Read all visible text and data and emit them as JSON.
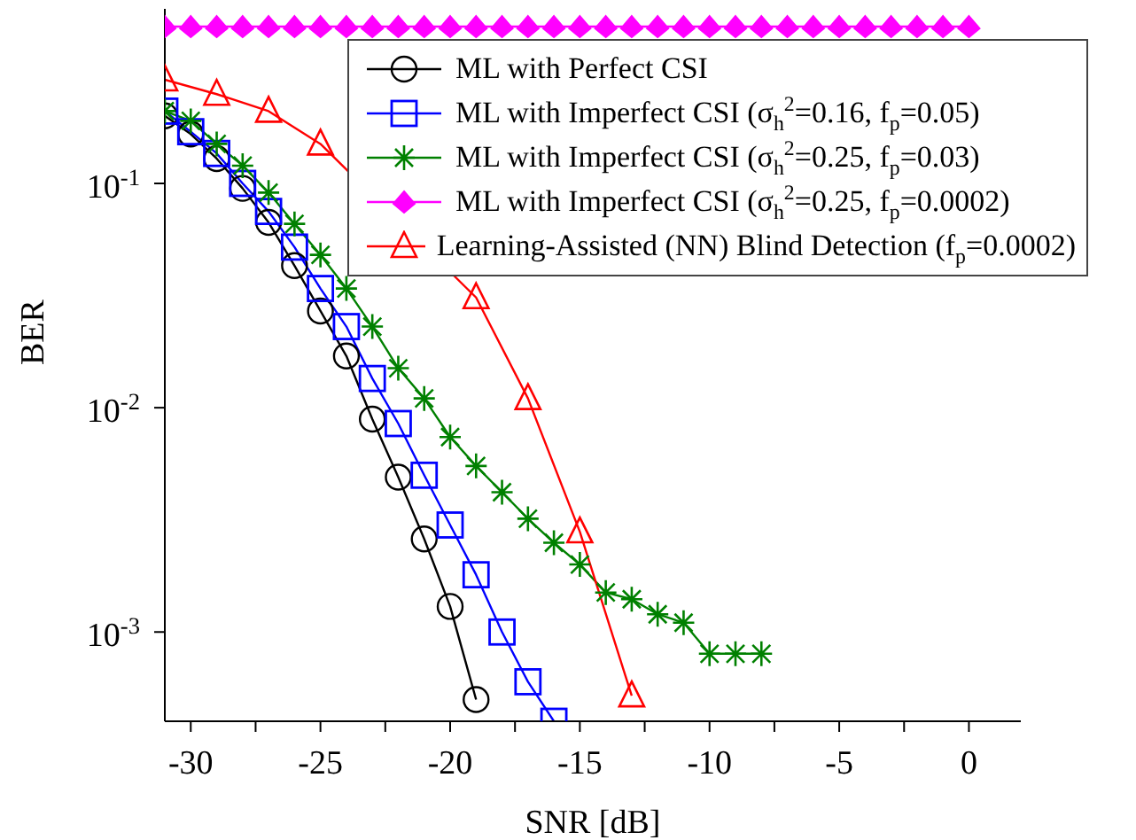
{
  "chart_data": {
    "type": "line",
    "xlabel": "SNR [dB]",
    "ylabel": "BER",
    "log": "y",
    "grid": false,
    "legend": "top right",
    "xlim": [
      -31,
      2
    ],
    "ylim": [
      0.0004,
      0.6
    ],
    "xticks": [
      -30,
      {
        "value": -27.5,
        "label": null
      },
      -25,
      {
        "value": -22.5,
        "label": null
      },
      -20,
      {
        "value": -17.5,
        "label": null
      },
      -15,
      {
        "value": -12.5,
        "label": null
      },
      -10,
      {
        "value": -7.5,
        "label": null
      },
      -5,
      {
        "value": -2.5,
        "label": null
      },
      0
    ],
    "yticks": [
      {
        "value": 0.001,
        "label": "10$^{-3}$"
      },
      {
        "value": 0.01,
        "label": "10$^{-2}$"
      },
      {
        "value": 0.1,
        "label": "10$^{-1}$"
      }
    ],
    "series": [
      {
        "name": "ML with Perfect CSI",
        "color": "#000000",
        "marker": "circle",
        "x": [
          -31,
          -30,
          -29,
          -28,
          -27,
          -26,
          -25,
          -24,
          -23,
          -22,
          -21,
          -20,
          -19
        ],
        "values": [
          0.2,
          0.166,
          0.129,
          0.095,
          0.067,
          0.043,
          0.027,
          0.017,
          0.0089,
          0.0049,
          0.0026,
          0.0013,
          0.0005
        ]
      },
      {
        "name": "ML with Imperfect CSI (σ$_{h}$$^{2}$=0.16, f$_{p}$=0.05)",
        "color": "#0000ff",
        "marker": "square",
        "x": [
          -31,
          -30,
          -29,
          -28,
          -27,
          -26,
          -25,
          -24,
          -23,
          -22,
          -21,
          -20,
          -19,
          -18,
          -17,
          -16
        ],
        "values": [
          0.21,
          0.17,
          0.136,
          0.1,
          0.075,
          0.052,
          0.034,
          0.023,
          0.0135,
          0.0085,
          0.005,
          0.003,
          0.0018,
          0.001,
          0.0006,
          0.0004
        ]
      },
      {
        "name": "ML with Imperfect CSI (σ$_{h}$$^{2}$=0.25, f$_{p}$=0.03)",
        "color": "#008000",
        "marker": "cross",
        "x": [
          -31,
          -30,
          -29,
          -28,
          -27,
          -26,
          -25,
          -24,
          -23,
          -22,
          -21,
          -20,
          -19,
          -18,
          -17,
          -16,
          -15,
          -14,
          -13,
          -12,
          -11,
          -10,
          -9,
          -8
        ],
        "values": [
          0.21,
          0.19,
          0.15,
          0.12,
          0.091,
          0.066,
          0.048,
          0.034,
          0.023,
          0.015,
          0.011,
          0.0074,
          0.0055,
          0.0042,
          0.0032,
          0.0025,
          0.002,
          0.0015,
          0.0014,
          0.0012,
          0.0011,
          0.0008,
          0.0008,
          0.0008
        ]
      },
      {
        "name": "ML with Imperfect CSI (σ$_{h}$$^{2}$=0.25, f$_{p}$=0.0002)",
        "color": "#ff00ff",
        "marker": "diamond",
        "x": [
          -31,
          -30,
          -29,
          -28,
          -27,
          -26,
          -25,
          -24,
          -23,
          -22,
          -21,
          -20,
          -19,
          -18,
          -17,
          -16,
          -15,
          -14,
          -13,
          -12,
          -11,
          -10,
          -9,
          -8,
          -7,
          -6,
          -5,
          -4,
          -3,
          -2,
          -1,
          0
        ],
        "values": [
          0.5,
          0.5,
          0.5,
          0.5,
          0.5,
          0.5,
          0.5,
          0.5,
          0.5,
          0.5,
          0.5,
          0.5,
          0.5,
          0.5,
          0.5,
          0.5,
          0.5,
          0.5,
          0.5,
          0.5,
          0.5,
          0.5,
          0.5,
          0.5,
          0.5,
          0.5,
          0.5,
          0.5,
          0.5,
          0.5,
          0.5,
          0.5
        ]
      },
      {
        "name": "Learning-Assisted (NN) Blind Detection (f$_{p}$=0.0002)",
        "color": "#ff0000",
        "marker": "triangle",
        "x": [
          -31,
          -29,
          -27,
          -25,
          -23,
          -21,
          -19,
          -17,
          -15,
          -13
        ],
        "values": [
          0.29,
          0.25,
          0.21,
          0.15,
          null,
          null,
          0.031,
          0.011,
          0.0028,
          0.00052
        ]
      }
    ]
  }
}
